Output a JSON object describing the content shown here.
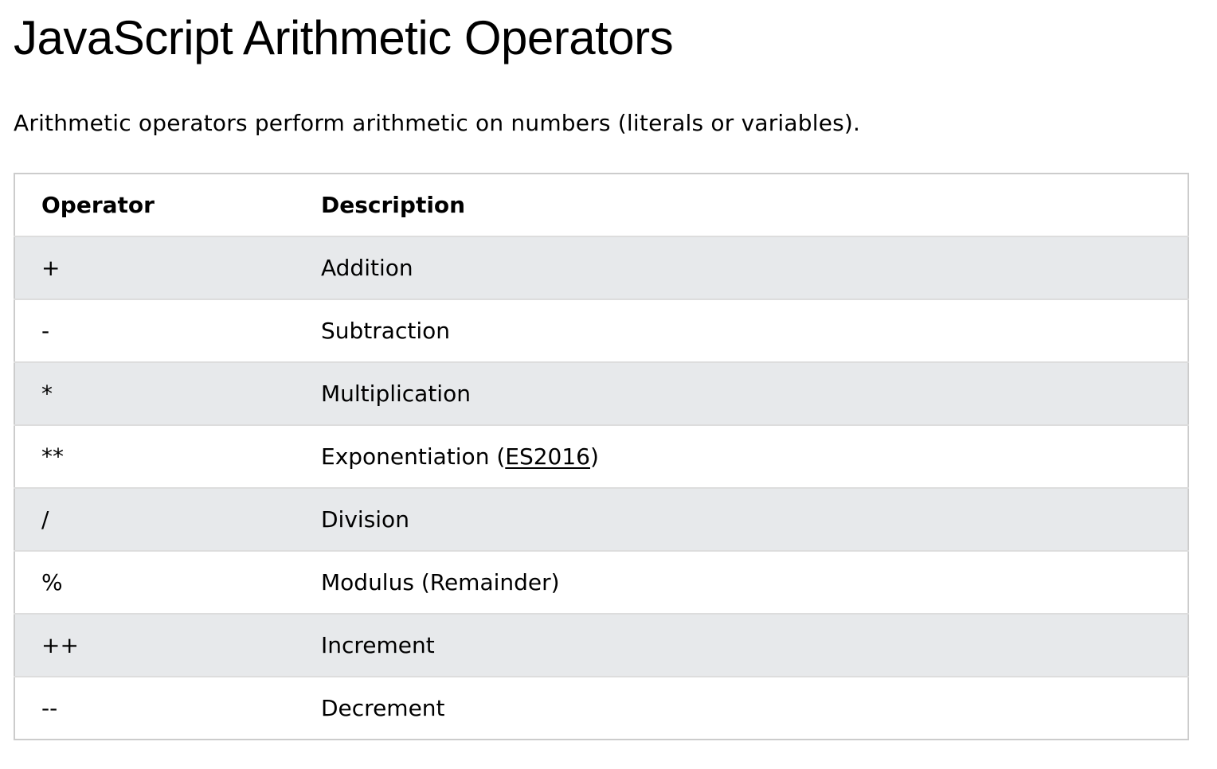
{
  "page": {
    "title": "JavaScript Arithmetic Operators",
    "intro": "Arithmetic operators perform arithmetic on numbers (literals or variables)."
  },
  "table": {
    "headers": {
      "operator": "Operator",
      "description": "Description"
    },
    "rows": [
      {
        "operator": "+",
        "description": "Addition"
      },
      {
        "operator": "-",
        "description": "Subtraction"
      },
      {
        "operator": "*",
        "description": "Multiplication"
      },
      {
        "operator": "**",
        "description_prefix": "Exponentiation (",
        "link_text": "ES2016",
        "description_suffix": ")"
      },
      {
        "operator": "/",
        "description": "Division"
      },
      {
        "operator": "%",
        "description": "Modulus (Remainder)"
      },
      {
        "operator": "++",
        "description": "Increment"
      },
      {
        "operator": "--",
        "description": "Decrement"
      }
    ]
  },
  "colors": {
    "stripe": "#e7e9eb",
    "border": "#cccccc",
    "row_divider": "#dddddd",
    "text": "#000000"
  }
}
